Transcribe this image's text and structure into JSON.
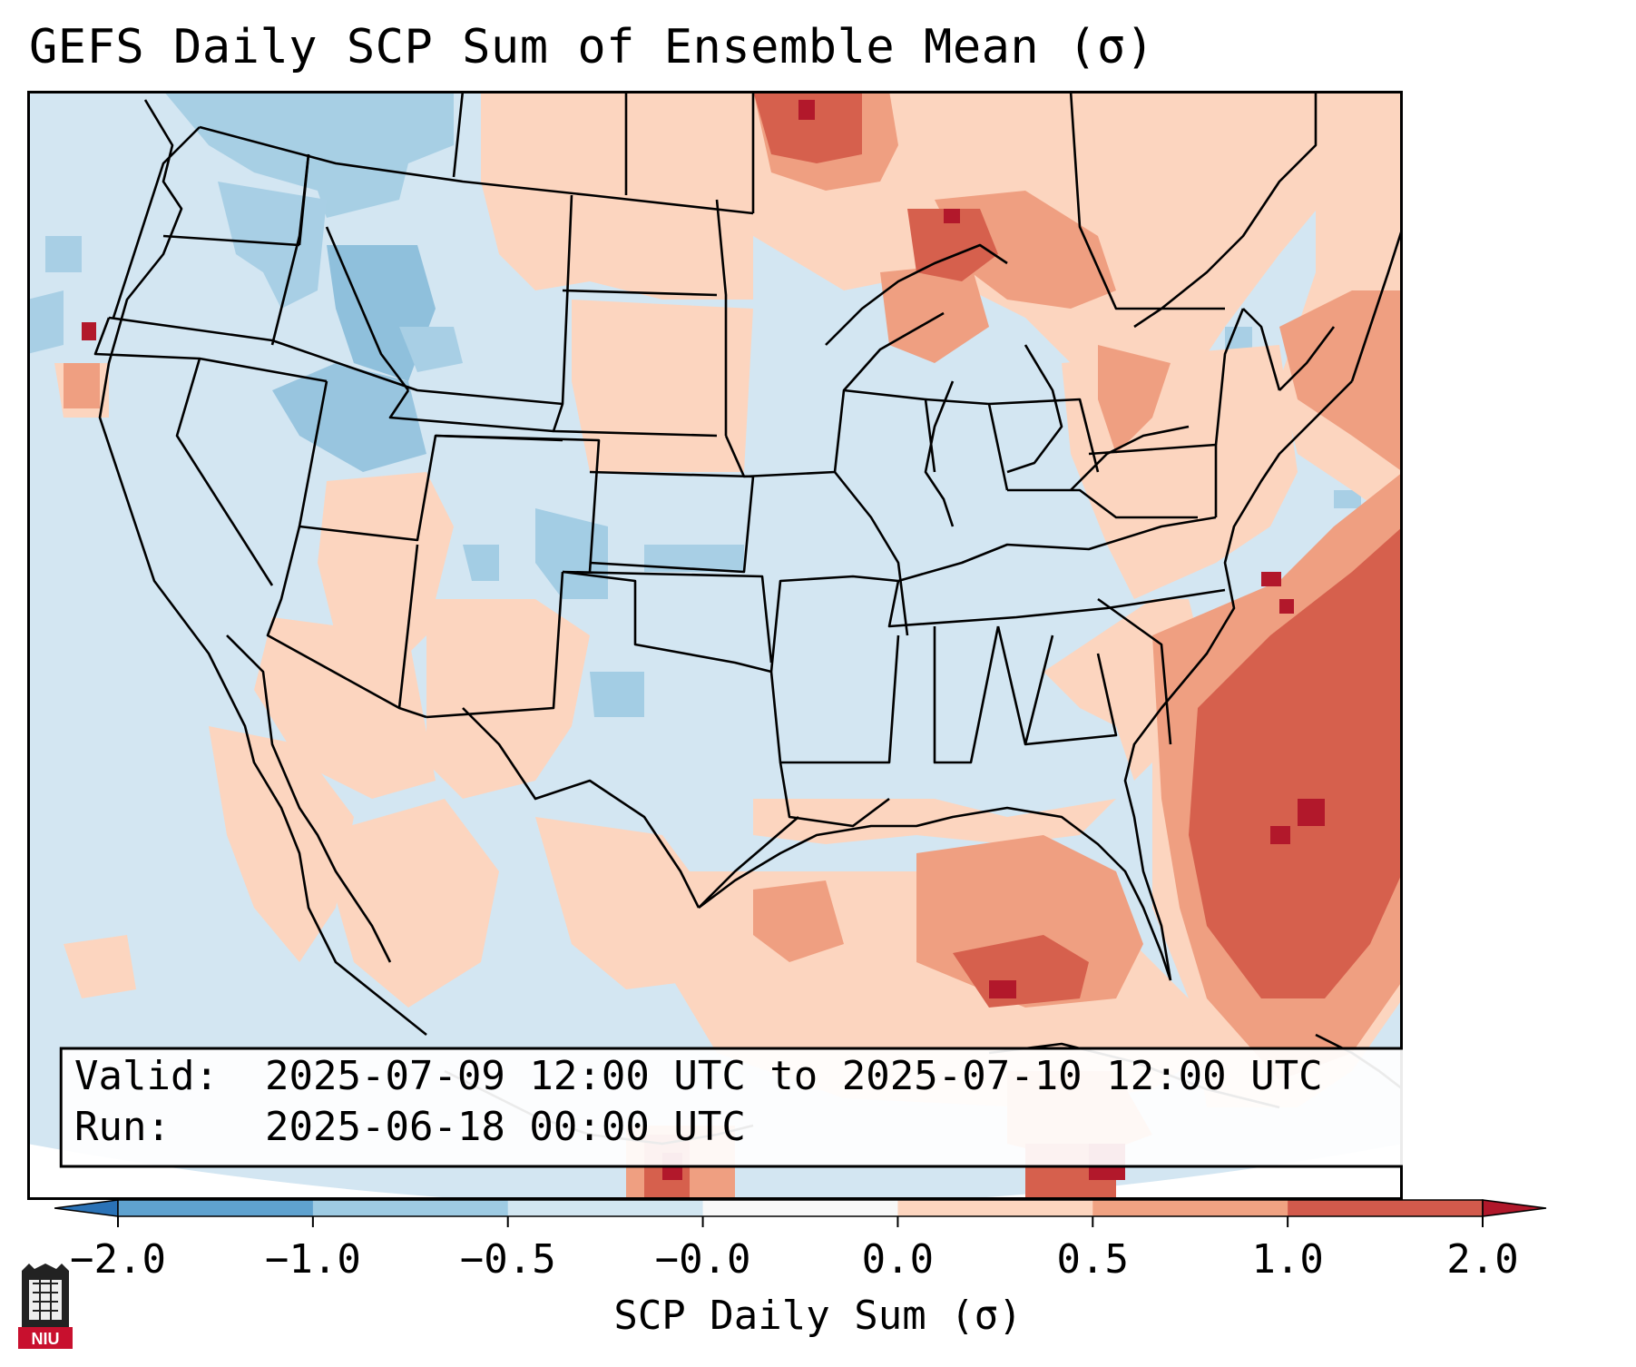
{
  "title": "GEFS Daily SCP Sum of Ensemble Mean (σ)",
  "info_box": {
    "valid_label": "Valid:",
    "valid_value": "2025-07-09 12:00 UTC to 2025-07-10 12:00 UTC",
    "run_label": "Run:",
    "run_value": "2025-06-18 00:00 UTC"
  },
  "colorbar": {
    "label": "SCP Daily Sum (σ)",
    "ticks": [
      "−2.0",
      "−1.0",
      "−0.5",
      "−0.0",
      "0.0",
      "0.5",
      "1.0",
      "2.0"
    ],
    "colors": [
      "#2a72b6",
      "#5fa2cf",
      "#9ecbe3",
      "#d2e6f1",
      "#f8f8f8",
      "#fcd5bf",
      "#f0a282",
      "#d25a4c",
      "#b0172a"
    ]
  },
  "legend_colors": {
    "ocean": "#d6e9f3",
    "outside": "#ffffff",
    "light_blue": "#d0e4f0",
    "medium_blue": "#9ecae1",
    "light_red": "#fcd5bf",
    "medium_red": "#ef9f81",
    "strong_red": "#d6604d",
    "dark_red": "#b2182b"
  },
  "logo": {
    "text": "NIU"
  }
}
